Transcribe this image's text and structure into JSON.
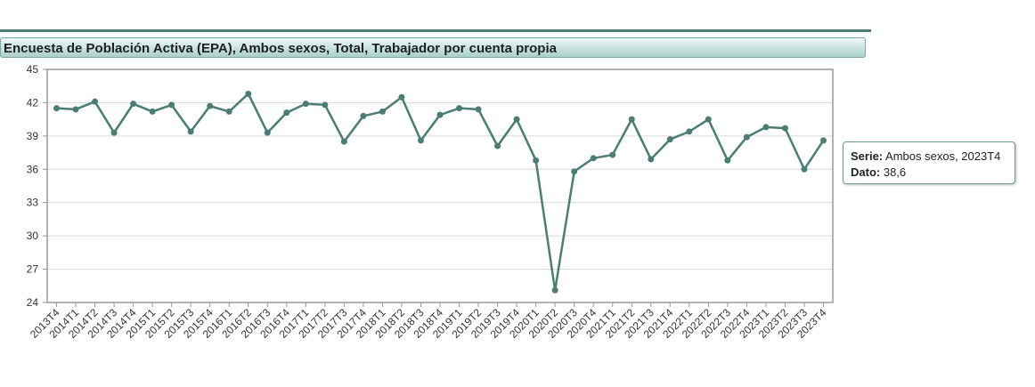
{
  "header": {
    "title": "Encuesta de Población Activa (EPA), Ambos sexos, Total, Trabajador por cuenta propia"
  },
  "tooltip": {
    "serie_label": "Serie:",
    "serie_value": "Ambos sexos, 2023T4",
    "dato_label": "Dato:",
    "dato_value": "38,6"
  },
  "colors": {
    "line": "#4a7d74",
    "grid": "#d9d9d9",
    "frame": "#999999"
  },
  "chart_data": {
    "type": "line",
    "title": "Encuesta de Población Activa (EPA), Ambos sexos, Total, Trabajador por cuenta propia",
    "xlabel": "",
    "ylabel": "",
    "ylim": [
      24,
      45
    ],
    "yticks": [
      24,
      27,
      30,
      33,
      36,
      39,
      42,
      45
    ],
    "grid": true,
    "categories": [
      "2013T4",
      "2014T1",
      "2014T2",
      "2014T3",
      "2014T4",
      "2015T1",
      "2015T2",
      "2015T3",
      "2015T4",
      "2016T1",
      "2016T2",
      "2016T3",
      "2016T4",
      "2017T1",
      "2017T2",
      "2017T3",
      "2017T4",
      "2018T1",
      "2018T2",
      "2018T3",
      "2018T4",
      "2019T1",
      "2019T2",
      "2019T3",
      "2019T4",
      "2020T1",
      "2020T2",
      "2020T3",
      "2020T4",
      "2021T1",
      "2021T2",
      "2021T3",
      "2021T4",
      "2022T1",
      "2022T2",
      "2022T3",
      "2022T4",
      "2023T1",
      "2023T2",
      "2023T3",
      "2023T4"
    ],
    "series": [
      {
        "values": [
          41.5,
          41.4,
          42.1,
          39.3,
          41.9,
          41.2,
          41.8,
          39.4,
          41.7,
          41.2,
          42.8,
          39.3,
          41.1,
          41.9,
          41.8,
          38.5,
          40.8,
          41.2,
          42.5,
          38.6,
          40.9,
          41.5,
          41.4,
          38.1,
          40.5,
          36.8,
          25.1,
          35.8,
          37.0,
          37.3,
          40.5,
          36.9,
          38.7,
          39.4,
          40.5,
          36.8,
          38.9,
          39.8,
          39.7,
          36.0,
          38.6
        ]
      }
    ]
  }
}
